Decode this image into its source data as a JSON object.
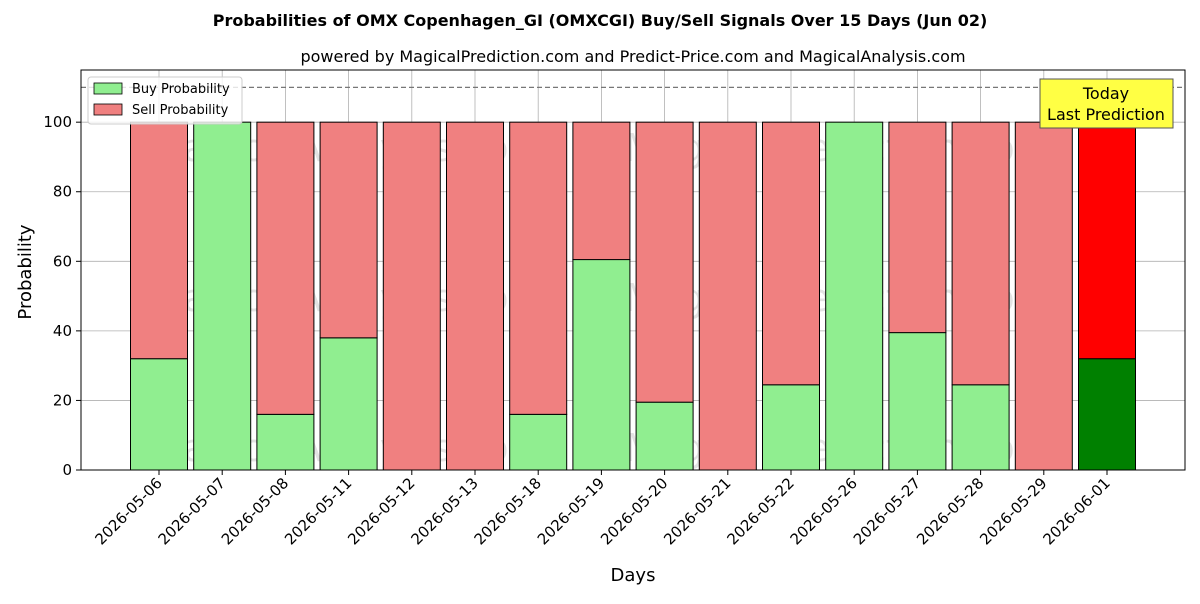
{
  "title": "Probabilities of OMX Copenhagen_GI (OMXCGI) Buy/Sell Signals Over 15 Days (Jun 02)",
  "subtitle": "powered by MagicalPrediction.com and Predict-Price.com and MagicalAnalysis.com",
  "watermarks": [
    "MagicalAnalysis.com",
    "MagicalPrediction.com"
  ],
  "annotation": {
    "line1": "Today",
    "line2": "Last Prediction"
  },
  "colors": {
    "buy": "#90EE90",
    "sell": "#F08080",
    "buy_today": "#008000",
    "sell_today": "#FF0000",
    "annotation_bg": "#FFFF44"
  },
  "chart_data": {
    "type": "bar",
    "stacked": true,
    "xlabel": "Days",
    "ylabel": "Probability",
    "ylim": [
      0,
      115
    ],
    "yticks": [
      0,
      20,
      40,
      60,
      80,
      100
    ],
    "reference_line": 110,
    "grid": true,
    "legend_position": "top-left",
    "categories": [
      "2026-05-06",
      "2026-05-07",
      "2026-05-08",
      "2026-05-11",
      "2026-05-12",
      "2026-05-13",
      "2026-05-18",
      "2026-05-19",
      "2026-05-20",
      "2026-05-21",
      "2026-05-22",
      "2026-05-26",
      "2026-05-27",
      "2026-05-28",
      "2026-05-29",
      "2026-06-01"
    ],
    "series": [
      {
        "name": "Buy Probability",
        "values": [
          32,
          100,
          16,
          38,
          0,
          0,
          16,
          60.5,
          19.5,
          0,
          24.5,
          100,
          39.5,
          24.5,
          0,
          32
        ]
      },
      {
        "name": "Sell Probability",
        "values": [
          68,
          0,
          84,
          62,
          100,
          100,
          84,
          39.5,
          80.5,
          100,
          75.5,
          0,
          60.5,
          75.5,
          100,
          68
        ]
      }
    ]
  }
}
